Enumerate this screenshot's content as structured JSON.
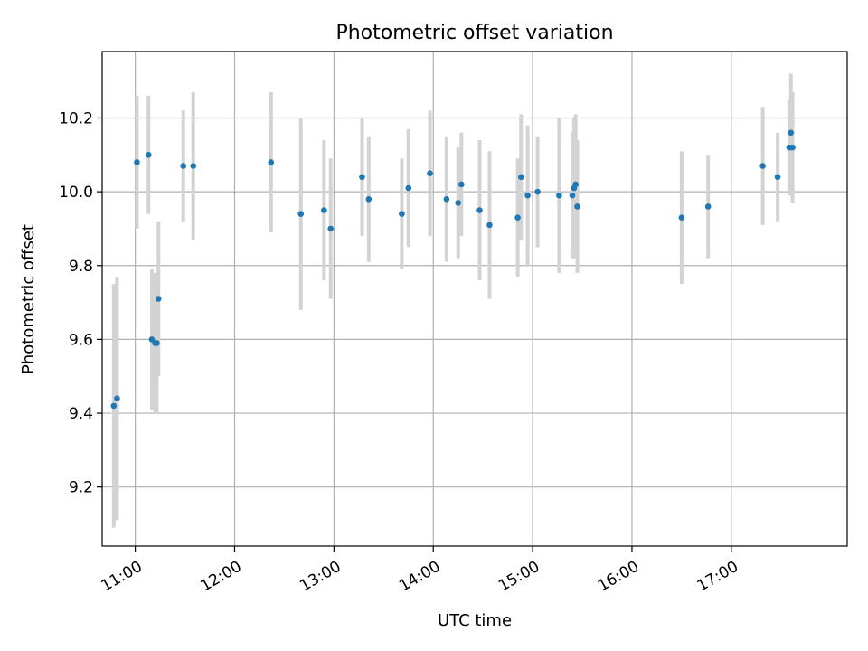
{
  "chart_data": {
    "type": "scatter",
    "title": "Photometric offset variation",
    "xlabel": "UTC time",
    "ylabel": "Photometric offset",
    "x_axis_type": "time",
    "xlim": [
      "10:40",
      "18:10"
    ],
    "ylim": [
      9.04,
      10.38
    ],
    "x_ticks": [
      "11:00",
      "12:00",
      "13:00",
      "14:00",
      "15:00",
      "16:00",
      "17:00"
    ],
    "y_ticks": [
      "9.2",
      "9.4",
      "9.6",
      "9.8",
      "10.0",
      "10.2"
    ],
    "grid": true,
    "series": [
      {
        "marker_color": "#1f77b4",
        "errorbar_color": "#d3d3d3",
        "points": [
          {
            "t": "10:47",
            "y": 9.42,
            "err": 0.33
          },
          {
            "t": "10:49",
            "y": 9.44,
            "err": 0.33
          },
          {
            "t": "11:01",
            "y": 10.08,
            "err": 0.18
          },
          {
            "t": "11:08",
            "y": 10.1,
            "err": 0.16
          },
          {
            "t": "11:10",
            "y": 9.6,
            "err": 0.19
          },
          {
            "t": "11:12",
            "y": 9.59,
            "err": 0.19
          },
          {
            "t": "11:13",
            "y": 9.59,
            "err": 0.19
          },
          {
            "t": "11:14",
            "y": 9.71,
            "err": 0.21
          },
          {
            "t": "11:29",
            "y": 10.07,
            "err": 0.15
          },
          {
            "t": "11:35",
            "y": 10.07,
            "err": 0.2
          },
          {
            "t": "12:22",
            "y": 10.08,
            "err": 0.19
          },
          {
            "t": "12:40",
            "y": 9.94,
            "err": 0.26
          },
          {
            "t": "12:54",
            "y": 9.95,
            "err": 0.19
          },
          {
            "t": "12:58",
            "y": 9.9,
            "err": 0.19
          },
          {
            "t": "13:17",
            "y": 10.04,
            "err": 0.16
          },
          {
            "t": "13:21",
            "y": 9.98,
            "err": 0.17
          },
          {
            "t": "13:41",
            "y": 9.94,
            "err": 0.15
          },
          {
            "t": "13:45",
            "y": 10.01,
            "err": 0.16
          },
          {
            "t": "13:58",
            "y": 10.05,
            "err": 0.17
          },
          {
            "t": "14:08",
            "y": 9.98,
            "err": 0.17
          },
          {
            "t": "14:15",
            "y": 9.97,
            "err": 0.15
          },
          {
            "t": "14:17",
            "y": 10.02,
            "err": 0.14
          },
          {
            "t": "14:28",
            "y": 9.95,
            "err": 0.19
          },
          {
            "t": "14:34",
            "y": 9.91,
            "err": 0.2
          },
          {
            "t": "14:51",
            "y": 9.93,
            "err": 0.16
          },
          {
            "t": "14:53",
            "y": 10.04,
            "err": 0.17
          },
          {
            "t": "14:57",
            "y": 9.99,
            "err": 0.19
          },
          {
            "t": "15:03",
            "y": 10.0,
            "err": 0.15
          },
          {
            "t": "15:16",
            "y": 9.99,
            "err": 0.21
          },
          {
            "t": "15:24",
            "y": 9.99,
            "err": 0.17
          },
          {
            "t": "15:25",
            "y": 10.01,
            "err": 0.19
          },
          {
            "t": "15:26",
            "y": 10.02,
            "err": 0.19
          },
          {
            "t": "15:27",
            "y": 9.96,
            "err": 0.18
          },
          {
            "t": "16:30",
            "y": 9.93,
            "err": 0.18
          },
          {
            "t": "16:46",
            "y": 9.96,
            "err": 0.14
          },
          {
            "t": "17:19",
            "y": 10.07,
            "err": 0.16
          },
          {
            "t": "17:28",
            "y": 10.04,
            "err": 0.12
          },
          {
            "t": "17:35",
            "y": 10.12,
            "err": 0.13
          },
          {
            "t": "17:36",
            "y": 10.16,
            "err": 0.16
          },
          {
            "t": "17:37",
            "y": 10.12,
            "err": 0.15
          }
        ]
      }
    ]
  }
}
